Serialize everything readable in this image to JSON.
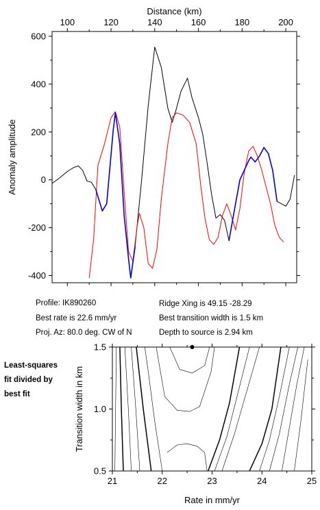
{
  "chart_data": [
    {
      "type": "line",
      "xlabel": "Distance (km)",
      "ylabel": "Anomaly amplitude",
      "xlim": [
        93,
        205
      ],
      "ylim": [
        -430,
        620
      ],
      "xticks": [
        100,
        120,
        140,
        160,
        180,
        200
      ],
      "yticks": [
        600,
        400,
        200,
        0,
        -200,
        -400
      ],
      "x_axis_position": "top",
      "grid": false,
      "series": [
        {
          "color": "#000000",
          "points": [
            [
              93,
              -15
            ],
            [
              96,
              5
            ],
            [
              100,
              35
            ],
            [
              103,
              52
            ],
            [
              105,
              58
            ],
            [
              107,
              40
            ],
            [
              109,
              -5
            ],
            [
              111,
              -10
            ],
            [
              113,
              -40
            ],
            [
              116,
              -130
            ],
            [
              118,
              -100
            ],
            [
              121,
              210
            ],
            [
              122,
              280
            ],
            [
              124,
              150
            ],
            [
              126,
              -150
            ],
            [
              128,
              -330
            ],
            [
              129,
              -410
            ],
            [
              131,
              -280
            ],
            [
              134,
              0
            ],
            [
              137,
              310
            ],
            [
              140,
              555
            ],
            [
              143,
              470
            ],
            [
              146,
              300
            ],
            [
              148,
              240
            ],
            [
              150,
              300
            ],
            [
              152,
              370
            ],
            [
              155,
              425
            ],
            [
              157,
              345
            ],
            [
              160,
              260
            ],
            [
              162,
              190
            ],
            [
              164,
              70
            ],
            [
              166,
              -60
            ],
            [
              168,
              -160
            ],
            [
              170,
              -145
            ],
            [
              172,
              -170
            ],
            [
              174,
              -255
            ],
            [
              176,
              -150
            ],
            [
              179,
              0
            ],
            [
              181,
              40
            ],
            [
              183,
              80
            ],
            [
              184,
              95
            ],
            [
              186,
              75
            ],
            [
              188,
              100
            ],
            [
              190,
              135
            ],
            [
              192,
              110
            ],
            [
              194,
              40
            ],
            [
              196,
              -90
            ],
            [
              198,
              -100
            ],
            [
              200,
              -110
            ],
            [
              202,
              -80
            ],
            [
              204,
              20
            ]
          ]
        },
        {
          "color": "#0000dd",
          "points": [
            [
              113,
              -40
            ],
            [
              116,
              -130
            ],
            [
              118,
              -100
            ],
            [
              121,
              210
            ],
            [
              122,
              280
            ],
            [
              124,
              150
            ],
            [
              126,
              -150
            ],
            [
              128,
              -330
            ],
            [
              129,
              -410
            ],
            [
              131,
              -280
            ],
            [
              174,
              -255
            ],
            [
              176,
              -150
            ],
            [
              179,
              0
            ],
            [
              181,
              40
            ],
            [
              183,
              80
            ],
            [
              184,
              95
            ],
            [
              186,
              75
            ],
            [
              188,
              100
            ],
            [
              190,
              135
            ],
            [
              192,
              110
            ],
            [
              194,
              40
            ],
            [
              196,
              -90
            ]
          ]
        },
        {
          "color": "#ff0000",
          "points": [
            [
              110,
              -410
            ],
            [
              112,
              -250
            ],
            [
              114,
              60
            ],
            [
              117,
              150
            ],
            [
              120,
              260
            ],
            [
              122,
              285
            ],
            [
              124,
              220
            ],
            [
              126,
              -50
            ],
            [
              128,
              -300
            ],
            [
              130,
              -340
            ],
            [
              132,
              -190
            ],
            [
              133,
              -140
            ],
            [
              135,
              -200
            ],
            [
              137,
              -350
            ],
            [
              139,
              -370
            ],
            [
              141,
              -290
            ],
            [
              143,
              -80
            ],
            [
              146,
              150
            ],
            [
              148,
              260
            ],
            [
              150,
              280
            ],
            [
              153,
              270
            ],
            [
              156,
              240
            ],
            [
              159,
              150
            ],
            [
              161,
              -20
            ],
            [
              163,
              -160
            ],
            [
              165,
              -250
            ],
            [
              167,
              -270
            ],
            [
              169,
              -240
            ],
            [
              171,
              -150
            ],
            [
              173,
              -100
            ],
            [
              175,
              -150
            ],
            [
              177,
              -210
            ],
            [
              179,
              -120
            ],
            [
              181,
              30
            ],
            [
              183,
              120
            ],
            [
              185,
              140
            ],
            [
              187,
              100
            ],
            [
              189,
              40
            ],
            [
              191,
              -30
            ],
            [
              193,
              -100
            ],
            [
              195,
              -190
            ],
            [
              197,
              -240
            ],
            [
              199,
              -260
            ]
          ]
        }
      ]
    },
    {
      "type": "line",
      "xlabel": "Rate in mm/yr",
      "ylabel": "Transition width in km",
      "xlim": [
        21,
        25
      ],
      "ylim": [
        0.5,
        1.5
      ],
      "xticks": [
        21,
        22,
        23,
        24,
        25
      ],
      "yticks": [
        0.5,
        1.0,
        1.5
      ],
      "marker": {
        "x": 22.6,
        "y": 1.5
      },
      "contours": [
        {
          "heavy": false,
          "points": [
            [
              21.05,
              0.5
            ],
            [
              21.08,
              1.5
            ]
          ]
        },
        {
          "heavy": true,
          "points": [
            [
              21.22,
              0.5
            ],
            [
              21.18,
              1.0
            ],
            [
              21.15,
              1.5
            ]
          ]
        },
        {
          "heavy": false,
          "points": [
            [
              21.38,
              0.5
            ],
            [
              21.32,
              1.0
            ],
            [
              21.25,
              1.5
            ]
          ]
        },
        {
          "heavy": false,
          "points": [
            [
              21.55,
              0.5
            ],
            [
              21.47,
              1.0
            ],
            [
              21.38,
              1.5
            ]
          ]
        },
        {
          "heavy": true,
          "points": [
            [
              21.78,
              0.5
            ],
            [
              21.62,
              1.0
            ],
            [
              21.48,
              1.5
            ]
          ]
        },
        {
          "heavy": false,
          "points": [
            [
              22.0,
              0.5
            ],
            [
              21.85,
              0.9
            ],
            [
              21.72,
              1.3
            ],
            [
              21.65,
              1.5
            ]
          ]
        },
        {
          "heavy": false,
          "points": [
            [
              22.1,
              0.65
            ],
            [
              22.3,
              0.71
            ],
            [
              22.5,
              0.72
            ],
            [
              22.7,
              0.7
            ],
            [
              22.85,
              0.65
            ],
            [
              22.9,
              0.5
            ]
          ]
        },
        {
          "heavy": false,
          "points": [
            [
              21.88,
              1.5
            ],
            [
              22.05,
              1.1
            ],
            [
              22.3,
              0.99
            ],
            [
              22.55,
              0.98
            ],
            [
              22.75,
              1.02
            ],
            [
              22.98,
              1.3
            ],
            [
              23.05,
              1.5
            ]
          ]
        },
        {
          "heavy": false,
          "points": [
            [
              22.15,
              1.5
            ],
            [
              22.35,
              1.32
            ],
            [
              22.6,
              1.29
            ],
            [
              22.85,
              1.35
            ],
            [
              22.95,
              1.5
            ]
          ]
        },
        {
          "heavy": true,
          "points": [
            [
              22.92,
              0.5
            ],
            [
              23.15,
              0.75
            ],
            [
              23.35,
              1.05
            ],
            [
              23.55,
              1.5
            ]
          ]
        },
        {
          "heavy": false,
          "points": [
            [
              23.05,
              0.5
            ],
            [
              23.3,
              0.78
            ],
            [
              23.5,
              1.1
            ],
            [
              23.75,
              1.5
            ]
          ]
        },
        {
          "heavy": false,
          "points": [
            [
              23.2,
              0.5
            ],
            [
              23.45,
              0.8
            ],
            [
              23.7,
              1.15
            ],
            [
              23.95,
              1.5
            ]
          ]
        },
        {
          "heavy": true,
          "points": [
            [
              23.75,
              0.5
            ],
            [
              24.0,
              0.72
            ],
            [
              24.2,
              1.0
            ],
            [
              24.38,
              1.5
            ]
          ]
        },
        {
          "heavy": false,
          "points": [
            [
              23.95,
              0.5
            ],
            [
              24.15,
              0.75
            ],
            [
              24.35,
              1.1
            ],
            [
              24.55,
              1.5
            ]
          ]
        },
        {
          "heavy": false,
          "points": [
            [
              24.15,
              0.5
            ],
            [
              24.35,
              0.8
            ],
            [
              24.55,
              1.2
            ],
            [
              24.72,
              1.5
            ]
          ]
        },
        {
          "heavy": false,
          "points": [
            [
              24.4,
              0.5
            ],
            [
              24.55,
              0.85
            ],
            [
              24.7,
              1.2
            ],
            [
              24.85,
              1.5
            ]
          ]
        },
        {
          "heavy": false,
          "points": [
            [
              24.65,
              0.5
            ],
            [
              24.78,
              0.9
            ],
            [
              24.92,
              1.4
            ]
          ]
        }
      ]
    }
  ],
  "info": {
    "profile": "Profile: IK890260",
    "best_rate": "Best rate is 22.6 mm/yr",
    "proj_az": "Proj. Az: 80.0 deg. CW of N",
    "ridge_xing": "Ridge Xing is 49.15 -28.29",
    "best_width": "Best transition width is 1.5 km",
    "depth": "Depth to source is   2.94 km"
  },
  "side_note": {
    "line1": "Least-squares",
    "line2": "fit divided by",
    "line3": "best fit"
  }
}
